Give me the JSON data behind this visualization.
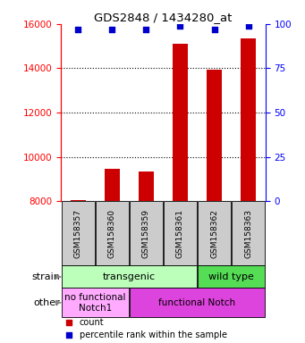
{
  "title": "GDS2848 / 1434280_at",
  "samples": [
    "GSM158357",
    "GSM158360",
    "GSM158359",
    "GSM158361",
    "GSM158362",
    "GSM158363"
  ],
  "counts": [
    8050,
    9450,
    9350,
    15100,
    13950,
    15350
  ],
  "percentiles": [
    97,
    97,
    97,
    99,
    97,
    99
  ],
  "ylim_left": [
    8000,
    16000
  ],
  "ylim_right": [
    0,
    100
  ],
  "yticks_left": [
    8000,
    10000,
    12000,
    14000,
    16000
  ],
  "yticks_right": [
    0,
    25,
    50,
    75,
    100
  ],
  "bar_color": "#cc0000",
  "dot_color": "#0000cc",
  "bar_baseline": 8000,
  "strain_groups": [
    {
      "label": "transgenic",
      "span": [
        0,
        3
      ],
      "color": "#bbffbb"
    },
    {
      "label": "wild type",
      "span": [
        4,
        5
      ],
      "color": "#55dd55"
    }
  ],
  "other_groups": [
    {
      "label": "no functional\nNotch1",
      "span": [
        0,
        1
      ],
      "color": "#ffaaff"
    },
    {
      "label": "functional Notch",
      "span": [
        2,
        5
      ],
      "color": "#dd44dd"
    }
  ],
  "legend_items": [
    {
      "label": "count",
      "color": "#cc0000"
    },
    {
      "label": "percentile rank within the sample",
      "color": "#0000cc"
    }
  ],
  "label_strain": "strain",
  "label_other": "other",
  "figsize": [
    3.41,
    3.84
  ],
  "dpi": 100
}
